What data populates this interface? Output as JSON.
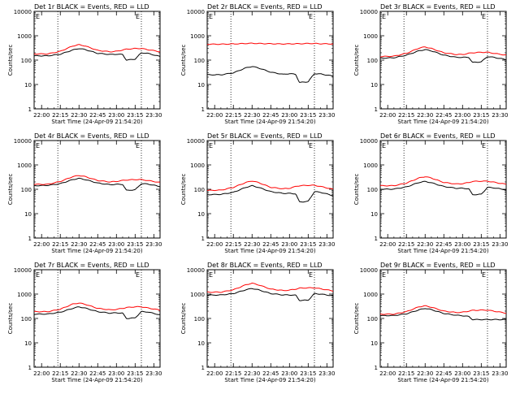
{
  "x_tick_labels": [
    "22:00",
    "22:15",
    "22:30",
    "22:45",
    "23:00",
    "23:15",
    "23:30"
  ],
  "y_tick_labels": [
    "1",
    "10",
    "100",
    "1000",
    "10000"
  ],
  "ylabel": "Counts/sec",
  "xlabel": "Start Time (24-Apr-09 21:54:20)",
  "corner_marker": "E",
  "colors": {
    "events": "#000000",
    "lld": "#ff0000",
    "frame": "#000000",
    "background": "#ffffff"
  },
  "chart_data": [
    {
      "type": "line",
      "title": "Det 1r BLACK = Events, RED = LLD",
      "xlabel": "Start Time (24-Apr-09 21:54:20)",
      "ylabel": "Counts/sec",
      "y_scale": "log",
      "ylim": [
        1,
        10000
      ],
      "xlim": [
        "21:54",
        "23:35"
      ],
      "vlines": [
        "22:13",
        "23:20"
      ],
      "x": [
        "21:54",
        "22:05",
        "22:15",
        "22:25",
        "22:30",
        "22:35",
        "22:45",
        "22:55",
        "23:00",
        "23:05",
        "23:08",
        "23:15",
        "23:20",
        "23:25",
        "23:35"
      ],
      "series": [
        {
          "name": "Events",
          "values": [
            150,
            150,
            175,
            260,
            300,
            270,
            190,
            170,
            175,
            170,
            100,
            110,
            200,
            190,
            140
          ]
        },
        {
          "name": "LLD",
          "values": [
            180,
            180,
            230,
            380,
            430,
            380,
            250,
            220,
            230,
            260,
            280,
            300,
            300,
            270,
            220
          ]
        }
      ]
    },
    {
      "type": "line",
      "title": "Det 2r BLACK = Events, RED = LLD",
      "xlabel": "Start Time (24-Apr-09 21:54:20)",
      "ylabel": "Counts/sec",
      "y_scale": "log",
      "ylim": [
        1,
        10000
      ],
      "xlim": [
        "21:54",
        "23:35"
      ],
      "vlines": [
        "22:13",
        "23:20"
      ],
      "x": [
        "21:54",
        "22:05",
        "22:15",
        "22:25",
        "22:30",
        "22:35",
        "22:45",
        "22:55",
        "23:00",
        "23:05",
        "23:08",
        "23:15",
        "23:20",
        "23:25",
        "23:35"
      ],
      "series": [
        {
          "name": "Events",
          "values": [
            25,
            25,
            30,
            48,
            55,
            48,
            32,
            26,
            28,
            26,
            12,
            13,
            28,
            27,
            22
          ]
        },
        {
          "name": "LLD",
          "values": [
            450,
            450,
            460,
            480,
            490,
            480,
            470,
            460,
            465,
            470,
            470,
            480,
            480,
            470,
            460
          ]
        }
      ]
    },
    {
      "type": "line",
      "title": "Det 3r BLACK = Events, RED = LLD",
      "xlabel": "Start Time (24-Apr-09 21:54:20)",
      "ylabel": "Counts/sec",
      "y_scale": "log",
      "ylim": [
        1,
        10000
      ],
      "xlim": [
        "21:54",
        "23:35"
      ],
      "vlines": [
        "22:13",
        "23:20"
      ],
      "x": [
        "21:54",
        "22:05",
        "22:15",
        "22:25",
        "22:30",
        "22:35",
        "22:45",
        "22:55",
        "23:00",
        "23:05",
        "23:08",
        "23:15",
        "23:20",
        "23:25",
        "23:35"
      ],
      "series": [
        {
          "name": "Events",
          "values": [
            120,
            125,
            160,
            240,
            270,
            240,
            160,
            130,
            130,
            130,
            80,
            85,
            140,
            130,
            105
          ]
        },
        {
          "name": "LLD",
          "values": [
            140,
            145,
            190,
            310,
            350,
            300,
            200,
            170,
            170,
            190,
            200,
            210,
            210,
            190,
            160
          ]
        }
      ]
    },
    {
      "type": "line",
      "title": "Det 4r BLACK = Events, RED = LLD",
      "xlabel": "Start Time (24-Apr-09 21:54:20)",
      "ylabel": "Counts/sec",
      "y_scale": "log",
      "ylim": [
        1,
        10000
      ],
      "xlim": [
        "21:54",
        "23:35"
      ],
      "vlines": [
        "22:13",
        "23:20"
      ],
      "x": [
        "21:54",
        "22:05",
        "22:15",
        "22:25",
        "22:30",
        "22:35",
        "22:45",
        "22:55",
        "23:00",
        "23:05",
        "23:08",
        "23:15",
        "23:20",
        "23:25",
        "23:35"
      ],
      "series": [
        {
          "name": "Events",
          "values": [
            140,
            145,
            170,
            250,
            280,
            250,
            180,
            155,
            160,
            160,
            90,
            95,
            170,
            165,
            130
          ]
        },
        {
          "name": "LLD",
          "values": [
            160,
            160,
            210,
            330,
            370,
            330,
            230,
            200,
            210,
            230,
            240,
            250,
            250,
            230,
            190
          ]
        }
      ]
    },
    {
      "type": "line",
      "title": "Det 5r BLACK = Events, RED = LLD",
      "xlabel": "Start Time (24-Apr-09 21:54:20)",
      "ylabel": "Counts/sec",
      "y_scale": "log",
      "ylim": [
        1,
        10000
      ],
      "xlim": [
        "21:54",
        "23:35"
      ],
      "vlines": [
        "22:13",
        "23:20"
      ],
      "x": [
        "21:54",
        "22:05",
        "22:15",
        "22:25",
        "22:30",
        "22:35",
        "22:45",
        "22:55",
        "23:00",
        "23:05",
        "23:08",
        "23:15",
        "23:20",
        "23:25",
        "23:35"
      ],
      "series": [
        {
          "name": "Events",
          "values": [
            60,
            62,
            75,
            120,
            140,
            120,
            80,
            68,
            68,
            65,
            30,
            32,
            80,
            75,
            55
          ]
        },
        {
          "name": "LLD",
          "values": [
            90,
            92,
            120,
            190,
            220,
            190,
            120,
            105,
            110,
            130,
            140,
            145,
            145,
            130,
            100
          ]
        }
      ]
    },
    {
      "type": "line",
      "title": "Det 6r BLACK = Events, RED = LLD",
      "xlabel": "Start Time (24-Apr-09 21:54:20)",
      "ylabel": "Counts/sec",
      "y_scale": "log",
      "ylim": [
        1,
        10000
      ],
      "xlim": [
        "21:54",
        "23:35"
      ],
      "vlines": [
        "22:13",
        "23:20"
      ],
      "x": [
        "21:54",
        "22:05",
        "22:15",
        "22:25",
        "22:30",
        "22:35",
        "22:45",
        "22:55",
        "23:00",
        "23:05",
        "23:08",
        "23:15",
        "23:20",
        "23:25",
        "23:35"
      ],
      "series": [
        {
          "name": "Events",
          "values": [
            100,
            102,
            125,
            190,
            210,
            185,
            130,
            110,
            110,
            105,
            60,
            62,
            120,
            115,
            95
          ]
        },
        {
          "name": "LLD",
          "values": [
            140,
            140,
            180,
            290,
            330,
            290,
            190,
            165,
            170,
            190,
            210,
            215,
            215,
            195,
            160
          ]
        }
      ]
    },
    {
      "type": "line",
      "title": "Det 7r BLACK = Events, RED = LLD",
      "xlabel": "Start Time (24-Apr-09 21:54:20)",
      "ylabel": "Counts/sec",
      "y_scale": "log",
      "ylim": [
        1,
        10000
      ],
      "xlim": [
        "21:54",
        "23:35"
      ],
      "vlines": [
        "22:13",
        "23:20"
      ],
      "x": [
        "21:54",
        "22:05",
        "22:15",
        "22:25",
        "22:30",
        "22:35",
        "22:45",
        "22:55",
        "23:00",
        "23:05",
        "23:08",
        "23:15",
        "23:20",
        "23:25",
        "23:35"
      ],
      "series": [
        {
          "name": "Events",
          "values": [
            150,
            152,
            180,
            260,
            300,
            265,
            190,
            165,
            170,
            165,
            100,
            105,
            190,
            185,
            140
          ]
        },
        {
          "name": "LLD",
          "values": [
            190,
            190,
            240,
            390,
            430,
            380,
            260,
            225,
            235,
            260,
            280,
            300,
            300,
            270,
            220
          ]
        }
      ]
    },
    {
      "type": "line",
      "title": "Det 8r BLACK = Events, RED = LLD",
      "xlabel": "Start Time (24-Apr-09 21:54:20)",
      "ylabel": "Counts/sec",
      "y_scale": "log",
      "ylim": [
        1,
        10000
      ],
      "xlim": [
        "21:54",
        "23:35"
      ],
      "vlines": [
        "22:13",
        "23:20"
      ],
      "x": [
        "21:54",
        "22:05",
        "22:15",
        "22:25",
        "22:30",
        "22:35",
        "22:45",
        "22:55",
        "23:00",
        "23:05",
        "23:08",
        "23:15",
        "23:20",
        "23:25",
        "23:35"
      ],
      "series": [
        {
          "name": "Events",
          "values": [
            900,
            920,
            1050,
            1500,
            1700,
            1500,
            1050,
            920,
            920,
            900,
            550,
            560,
            1050,
            1000,
            850
          ]
        },
        {
          "name": "LLD",
          "values": [
            1200,
            1200,
            1500,
            2400,
            2800,
            2400,
            1600,
            1400,
            1450,
            1600,
            1750,
            1800,
            1800,
            1650,
            1350
          ]
        }
      ]
    },
    {
      "type": "line",
      "title": "Det 9r BLACK = Events, RED = LLD",
      "xlabel": "Start Time (24-Apr-09 21:54:20)",
      "ylabel": "Counts/sec",
      "y_scale": "log",
      "ylim": [
        1,
        10000
      ],
      "xlim": [
        "21:54",
        "23:35"
      ],
      "vlines": [
        "22:13",
        "23:20"
      ],
      "x": [
        "21:54",
        "22:05",
        "22:15",
        "22:25",
        "22:30",
        "22:35",
        "22:45",
        "22:55",
        "23:00",
        "23:05",
        "23:08",
        "23:15",
        "23:20",
        "23:25",
        "23:35"
      ],
      "series": [
        {
          "name": "Events",
          "values": [
            130,
            132,
            155,
            225,
            260,
            230,
            160,
            135,
            130,
            120,
            90,
            90,
            90,
            90,
            90
          ]
        },
        {
          "name": "LLD",
          "values": [
            150,
            150,
            190,
            300,
            330,
            290,
            200,
            175,
            180,
            200,
            215,
            220,
            220,
            200,
            165
          ]
        }
      ]
    }
  ]
}
